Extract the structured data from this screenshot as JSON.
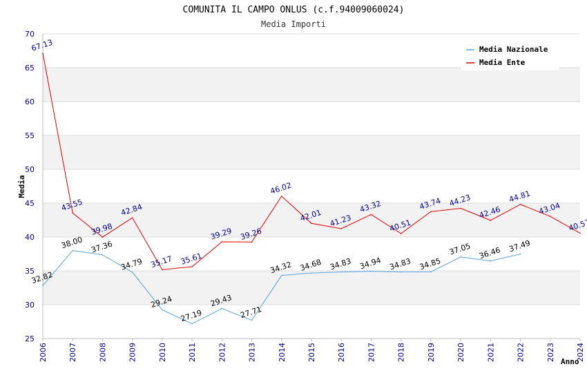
{
  "chart_data": {
    "type": "line",
    "title": "COMUNITA IL CAMPO ONLUS (c.f.94009060024)",
    "subtitle": "Media Importi",
    "xlabel": "Anno",
    "ylabel": "Media",
    "ylim": [
      25,
      70
    ],
    "yticks": [
      "25",
      "30",
      "35",
      "40",
      "45",
      "50",
      "55",
      "60",
      "65",
      "70"
    ],
    "categories": [
      "2006",
      "2007",
      "2008",
      "2009",
      "2010",
      "2011",
      "2012",
      "2013",
      "2014",
      "2015",
      "2016",
      "2017",
      "2018",
      "2019",
      "2020",
      "2021",
      "2022",
      "2023",
      "2024"
    ],
    "grid": true,
    "legend_position": "top-right",
    "series": [
      {
        "name": "Media Nazionale",
        "color": "#5aa3e0",
        "label_color": "#000000",
        "values": [
          32.82,
          38.0,
          37.36,
          34.79,
          29.24,
          27.19,
          29.43,
          27.71,
          34.32,
          34.68,
          34.83,
          34.94,
          34.83,
          34.85,
          37.05,
          36.46,
          37.49,
          null,
          null
        ],
        "labels": [
          "32.82",
          "38.00",
          "37.36",
          "34.79",
          "29.24",
          "27.19",
          "29.43",
          "27.71",
          "34.32",
          "34.68",
          "34.83",
          "34.94",
          "34.83",
          "34.85",
          "37.05",
          "36.46",
          "37.49",
          null,
          null
        ]
      },
      {
        "name": "Media Ente",
        "color": "#e00000",
        "label_color": "#00008b",
        "values": [
          67.13,
          43.55,
          39.98,
          42.84,
          35.17,
          35.61,
          39.29,
          39.26,
          46.02,
          42.01,
          41.23,
          43.32,
          40.51,
          43.74,
          44.23,
          42.46,
          44.81,
          43.04,
          40.57
        ],
        "labels": [
          "67.13",
          "43.55",
          "39.98",
          "42.84",
          "35.17",
          "35.61",
          "39.29",
          "39.26",
          "46.02",
          "42.01",
          "41.23",
          "43.32",
          "40.51",
          "43.74",
          "44.23",
          "42.46",
          "44.81",
          "43.04",
          "40.57"
        ]
      }
    ]
  }
}
